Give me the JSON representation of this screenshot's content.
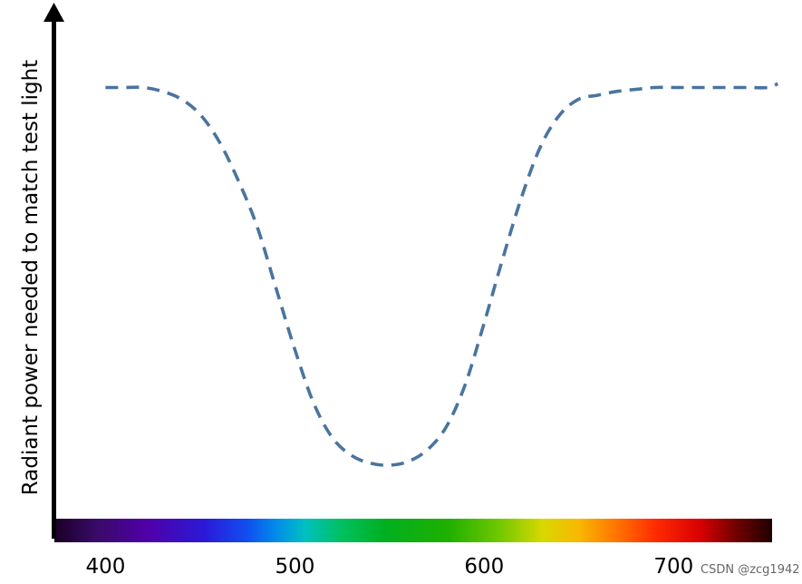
{
  "chart_data": {
    "type": "line",
    "title": "",
    "ylabel": "Radiant power needed to match test light",
    "xlabel": "",
    "x_ticks": [
      400,
      500,
      600,
      700
    ],
    "xlim": [
      373,
      752
    ],
    "ylim": [
      0,
      1
    ],
    "grid": false,
    "legend": "none",
    "line_style": "dashed",
    "line_color": "#4a74a0",
    "axis_color": "#000000",
    "series": [
      {
        "x": [
          400,
          410,
          420,
          430,
          440,
          450,
          460,
          470,
          480,
          490,
          500,
          510,
          520,
          530,
          540,
          550,
          560,
          570,
          580,
          590,
          600,
          610,
          620,
          630,
          640,
          650,
          660,
          670,
          680,
          690,
          700,
          710,
          720,
          730,
          740,
          750,
          755
        ],
        "y": [
          0.98,
          0.98,
          0.98,
          0.97,
          0.95,
          0.91,
          0.84,
          0.74,
          0.62,
          0.46,
          0.3,
          0.16,
          0.07,
          0.025,
          0.005,
          0.0,
          0.01,
          0.04,
          0.1,
          0.21,
          0.37,
          0.54,
          0.7,
          0.83,
          0.91,
          0.95,
          0.96,
          0.97,
          0.975,
          0.98,
          0.98,
          0.98,
          0.98,
          0.98,
          0.98,
          0.98,
          0.99
        ]
      }
    ],
    "spectrum_bar": {
      "stops": [
        {
          "offset": 0.0,
          "color": "#1a0026"
        },
        {
          "offset": 0.06,
          "color": "#3a0a6a"
        },
        {
          "offset": 0.13,
          "color": "#5000a8"
        },
        {
          "offset": 0.21,
          "color": "#2a1ad8"
        },
        {
          "offset": 0.27,
          "color": "#1050f0"
        },
        {
          "offset": 0.31,
          "color": "#008ee8"
        },
        {
          "offset": 0.35,
          "color": "#00c0c0"
        },
        {
          "offset": 0.4,
          "color": "#00c060"
        },
        {
          "offset": 0.46,
          "color": "#00b020"
        },
        {
          "offset": 0.55,
          "color": "#20b000"
        },
        {
          "offset": 0.62,
          "color": "#70c800"
        },
        {
          "offset": 0.68,
          "color": "#d8d800"
        },
        {
          "offset": 0.73,
          "color": "#f8b800"
        },
        {
          "offset": 0.78,
          "color": "#ff7800"
        },
        {
          "offset": 0.84,
          "color": "#ff2800"
        },
        {
          "offset": 0.9,
          "color": "#d80000"
        },
        {
          "offset": 0.95,
          "color": "#700000"
        },
        {
          "offset": 1.0,
          "color": "#200000"
        }
      ]
    }
  },
  "watermark": "CSDN @zcg1942"
}
